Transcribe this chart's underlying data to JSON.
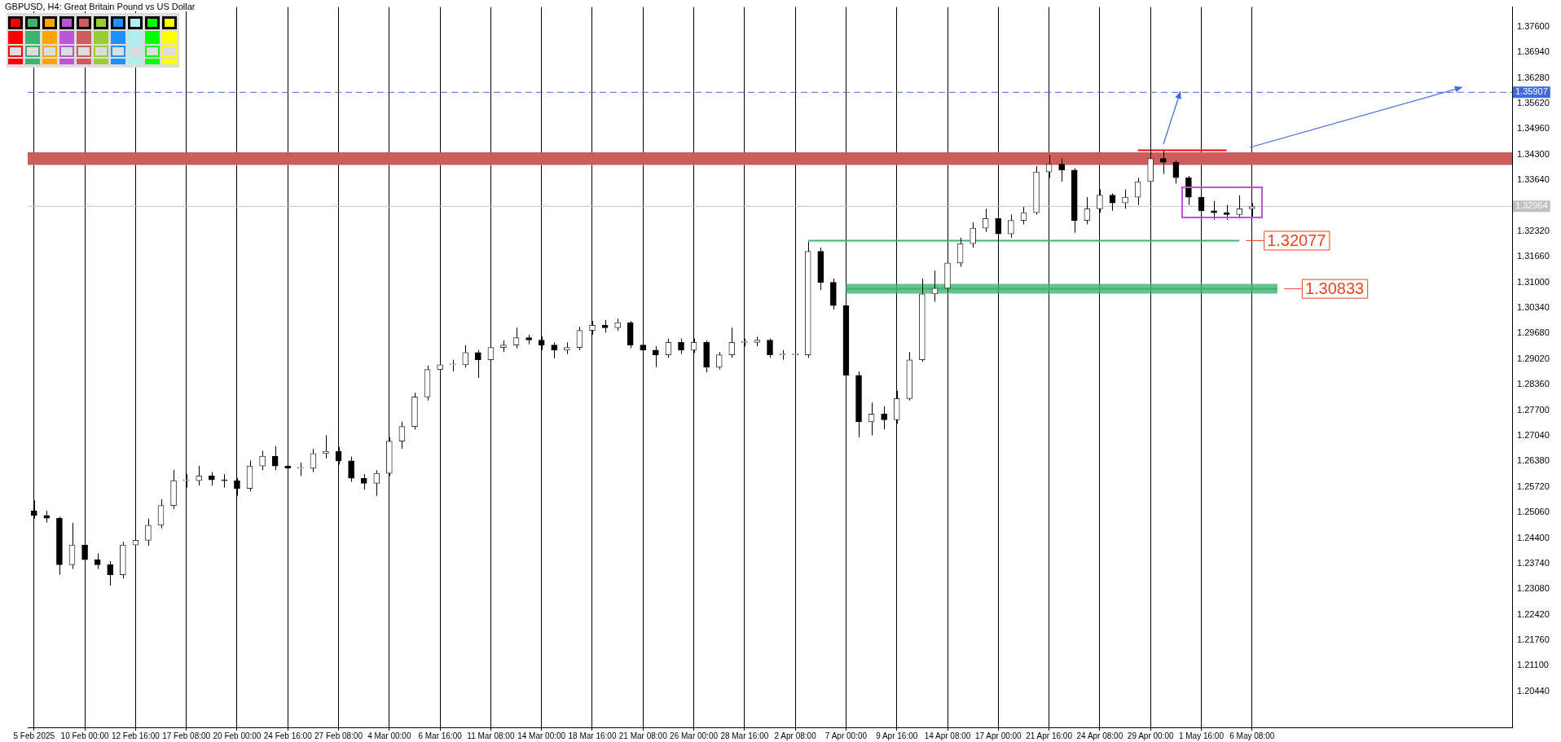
{
  "chart_data": {
    "type": "candlestick",
    "title": "GBPUSD, H4: Great Britain Pound vs US Dollar",
    "categories": [
      "5 Feb 2025",
      null,
      null,
      null,
      "10 Feb 00:00",
      null,
      null,
      null,
      "12 Feb 16:00",
      null,
      null,
      null,
      "17 Feb 08:00",
      null,
      null,
      null,
      "20 Feb 00:00",
      null,
      null,
      null,
      "24 Feb 16:00",
      null,
      null,
      null,
      "27 Feb 08:00",
      null,
      null,
      null,
      "4 Mar 00:00",
      null,
      null,
      null,
      "6 Mar 16:00",
      null,
      null,
      null,
      "11 Mar 08:00",
      null,
      null,
      null,
      "14 Mar 00:00",
      null,
      null,
      null,
      "18 Mar 16:00",
      null,
      null,
      null,
      "21 Mar 08:00",
      null,
      null,
      null,
      "26 Mar 00:00",
      null,
      null,
      null,
      "28 Mar 16:00",
      null,
      null,
      null,
      "2 Apr 08:00",
      null,
      null,
      null,
      "7 Apr 00:00",
      null,
      null,
      null,
      "9 Apr 16:00",
      null,
      null,
      null,
      "14 Apr 08:00",
      null,
      null,
      null,
      "17 Apr 00:00",
      null,
      null,
      null,
      "21 Apr 16:00",
      null,
      null,
      null,
      "24 Apr 08:00",
      null,
      null,
      null,
      "29 Apr 00:00",
      null,
      null,
      null,
      "1 May 16:00",
      null,
      null,
      null,
      "6 May 08:00",
      null,
      null,
      null,
      null,
      null,
      null,
      null,
      null,
      null,
      null,
      null,
      null,
      null,
      null,
      null,
      null,
      null,
      null,
      null,
      null
    ],
    "ohlc": [
      [
        1.251,
        1.2537,
        1.249,
        1.2498
      ],
      [
        1.2498,
        1.251,
        1.248,
        1.2491
      ],
      [
        1.2491,
        1.2495,
        1.2345,
        1.2371
      ],
      [
        1.2371,
        1.2479,
        1.236,
        1.2422
      ],
      [
        1.2422,
        1.243,
        1.237,
        1.2384
      ],
      [
        1.2384,
        1.24,
        1.236,
        1.2371
      ],
      [
        1.2371,
        1.238,
        1.2317,
        1.2345
      ],
      [
        1.2345,
        1.243,
        1.2335,
        1.2422
      ],
      [
        1.2422,
        1.2445,
        1.2364,
        1.2434
      ],
      [
        1.2434,
        1.249,
        1.242,
        1.2473
      ],
      [
        1.2473,
        1.254,
        1.2465,
        1.2524
      ],
      [
        1.2524,
        1.2616,
        1.2515,
        1.2588
      ],
      [
        1.2588,
        1.2605,
        1.257,
        1.2588
      ],
      [
        1.2588,
        1.2626,
        1.2575,
        1.26
      ],
      [
        1.26,
        1.261,
        1.2575,
        1.259
      ],
      [
        1.259,
        1.2605,
        1.257,
        1.2588
      ],
      [
        1.2588,
        1.2595,
        1.2549,
        1.2568
      ],
      [
        1.2568,
        1.264,
        1.256,
        1.2626
      ],
      [
        1.2626,
        1.2665,
        1.2615,
        1.2651
      ],
      [
        1.2651,
        1.2677,
        1.2615,
        1.2626
      ],
      [
        1.2626,
        1.264,
        1.2605,
        1.262
      ],
      [
        1.262,
        1.2635,
        1.26,
        1.262
      ],
      [
        1.262,
        1.267,
        1.261,
        1.2658
      ],
      [
        1.2658,
        1.2705,
        1.2645,
        1.2664
      ],
      [
        1.2664,
        1.2675,
        1.263,
        1.2639
      ],
      [
        1.2639,
        1.265,
        1.2585,
        1.2594
      ],
      [
        1.2594,
        1.2605,
        1.2565,
        1.2581
      ],
      [
        1.2581,
        1.2615,
        1.2549,
        1.2607
      ],
      [
        1.2607,
        1.27,
        1.26,
        1.269
      ],
      [
        1.269,
        1.274,
        1.267,
        1.2728
      ],
      [
        1.2728,
        1.2815,
        1.272,
        1.2804
      ],
      [
        1.2804,
        1.2885,
        1.2795,
        1.2875
      ],
      [
        1.2875,
        1.2917,
        1.286,
        1.2887
      ],
      [
        1.2887,
        1.29,
        1.287,
        1.2887
      ],
      [
        1.2887,
        1.2938,
        1.288,
        1.2919
      ],
      [
        1.2919,
        1.2925,
        1.2853,
        1.29
      ],
      [
        1.29,
        1.2945,
        1.289,
        1.2932
      ],
      [
        1.2932,
        1.295,
        1.292,
        1.2938
      ],
      [
        1.2938,
        1.2983,
        1.293,
        1.2957
      ],
      [
        1.2957,
        1.2965,
        1.294,
        1.2951
      ],
      [
        1.2951,
        1.296,
        1.2925,
        1.2938
      ],
      [
        1.2938,
        1.2945,
        1.2904,
        1.2925
      ],
      [
        1.2925,
        1.2945,
        1.2915,
        1.2932
      ],
      [
        1.2932,
        1.2985,
        1.2925,
        1.2976
      ],
      [
        1.2976,
        1.3,
        1.2965,
        1.2989
      ],
      [
        1.2989,
        1.3003,
        1.297,
        1.2983
      ],
      [
        1.2983,
        1.3006,
        1.2975,
        1.2996
      ],
      [
        1.2996,
        1.3,
        1.293,
        1.2938
      ],
      [
        1.2938,
        1.295,
        1.2915,
        1.2925
      ],
      [
        1.2925,
        1.2935,
        1.2881,
        1.2913
      ],
      [
        1.2913,
        1.2955,
        1.2905,
        1.2945
      ],
      [
        1.2945,
        1.2955,
        1.2915,
        1.2925
      ],
      [
        1.2925,
        1.2955,
        1.2918,
        1.2945
      ],
      [
        1.2945,
        1.295,
        1.2868,
        1.2881
      ],
      [
        1.2881,
        1.292,
        1.2875,
        1.2913
      ],
      [
        1.2913,
        1.2983,
        1.2905,
        1.2945
      ],
      [
        1.2945,
        1.2955,
        1.2935,
        1.2945
      ],
      [
        1.2945,
        1.296,
        1.2935,
        1.2951
      ],
      [
        1.2951,
        1.2955,
        1.2905,
        1.2913
      ],
      [
        1.2913,
        1.2925,
        1.29,
        1.2913
      ],
      [
        1.2913,
        1.2925,
        1.29,
        1.2913
      ],
      [
        1.2913,
        1.3205,
        1.2905,
        1.318
      ],
      [
        1.318,
        1.319,
        1.308,
        1.31
      ],
      [
        1.31,
        1.311,
        1.303,
        1.304
      ],
      [
        1.304,
        1.305,
        1.284,
        1.286
      ],
      [
        1.286,
        1.287,
        1.27,
        1.274
      ],
      [
        1.274,
        1.279,
        1.2705,
        1.276
      ],
      [
        1.276,
        1.278,
        1.272,
        1.2745
      ],
      [
        1.2745,
        1.282,
        1.2735,
        1.28
      ],
      [
        1.28,
        1.292,
        1.2795,
        1.29
      ],
      [
        1.29,
        1.311,
        1.2895,
        1.307
      ],
      [
        1.307,
        1.313,
        1.305,
        1.3085
      ],
      [
        1.3085,
        1.3165,
        1.3075,
        1.315
      ],
      [
        1.315,
        1.3215,
        1.314,
        1.32
      ],
      [
        1.32,
        1.3255,
        1.319,
        1.324
      ],
      [
        1.324,
        1.329,
        1.323,
        1.3265
      ],
      [
        1.3265,
        1.327,
        1.3205,
        1.3225
      ],
      [
        1.3225,
        1.3275,
        1.3215,
        1.326
      ],
      [
        1.326,
        1.3295,
        1.325,
        1.328
      ],
      [
        1.328,
        1.34,
        1.3275,
        1.3385
      ],
      [
        1.3385,
        1.3429,
        1.337,
        1.3405
      ],
      [
        1.3405,
        1.342,
        1.336,
        1.339
      ],
      [
        1.339,
        1.3395,
        1.3228,
        1.326
      ],
      [
        1.326,
        1.332,
        1.325,
        1.329
      ],
      [
        1.329,
        1.334,
        1.328,
        1.3325
      ],
      [
        1.3325,
        1.333,
        1.3285,
        1.3305
      ],
      [
        1.3305,
        1.334,
        1.329,
        1.332
      ],
      [
        1.332,
        1.337,
        1.33,
        1.336
      ],
      [
        1.336,
        1.3442,
        1.335,
        1.342
      ],
      [
        1.342,
        1.344,
        1.338,
        1.341
      ],
      [
        1.341,
        1.3415,
        1.3355,
        1.337
      ],
      [
        1.337,
        1.3375,
        1.33,
        1.332
      ],
      [
        1.332,
        1.3325,
        1.3265,
        1.3285
      ],
      [
        1.3285,
        1.331,
        1.3262,
        1.328
      ],
      [
        1.328,
        1.33,
        1.3262,
        1.3275
      ],
      [
        1.3275,
        1.3325,
        1.3265,
        1.329
      ],
      [
        1.329,
        1.3305,
        1.327,
        1.3296
      ],
      null,
      null,
      null,
      null,
      null,
      null,
      null,
      null,
      null,
      null,
      null,
      null,
      null,
      null,
      null,
      null,
      null,
      null,
      null,
      null
    ],
    "series": [
      {
        "type": "line",
        "color": "#3cb371",
        "values": [
          null,
          null,
          null,
          null,
          null,
          null,
          null,
          null,
          null,
          null,
          null,
          null,
          null,
          null,
          null,
          null,
          null,
          null,
          null,
          null,
          null,
          null,
          null,
          null,
          null,
          null,
          null,
          null,
          null,
          null,
          null,
          null,
          null,
          null,
          null,
          null,
          null,
          null,
          null,
          null,
          null,
          null,
          null,
          null,
          null,
          null,
          null,
          null,
          null,
          null,
          null,
          null,
          null,
          null,
          null,
          null,
          null,
          null,
          null,
          null,
          null,
          1.32077,
          null,
          null,
          null,
          null,
          null,
          null,
          null,
          null,
          null,
          null,
          null,
          null,
          null,
          null,
          null,
          null,
          null,
          null,
          null,
          null,
          null,
          null,
          null,
          null,
          null,
          null,
          null,
          null,
          null,
          null,
          null,
          null,
          null,
          1.32077,
          null,
          null,
          null,
          null,
          null,
          null,
          null,
          null,
          null,
          null,
          null,
          null,
          null,
          null,
          null,
          null,
          null,
          null,
          null,
          null,
          null
        ],
        "value_labels": [
          null,
          null,
          null,
          null,
          null,
          null,
          null,
          null,
          null,
          null,
          null,
          null,
          null,
          null,
          null,
          null,
          null,
          null,
          null,
          null,
          null,
          null,
          null,
          null,
          null,
          null,
          null,
          null,
          null,
          null,
          null,
          null,
          null,
          null,
          null,
          null,
          null,
          null,
          null,
          null,
          null,
          null,
          null,
          null,
          null,
          null,
          null,
          null,
          null,
          null,
          null,
          null,
          null,
          null,
          null,
          null,
          null,
          null,
          null,
          null,
          null,
          null,
          null,
          null,
          null,
          null,
          null,
          null,
          null,
          null,
          null,
          null,
          null,
          null,
          null,
          null,
          null,
          null,
          null,
          null,
          null,
          null,
          null,
          null,
          null,
          null,
          null,
          null,
          null,
          null,
          null,
          null,
          null,
          null,
          null,
          "1.32077",
          null,
          null,
          null,
          null,
          null,
          null,
          null,
          null,
          null,
          null,
          null,
          null,
          null,
          null,
          null,
          null,
          null,
          null,
          null,
          null,
          null
        ]
      },
      {
        "type": "line",
        "color": "#3cb371",
        "values": [
          null,
          null,
          null,
          null,
          null,
          null,
          null,
          null,
          null,
          null,
          null,
          null,
          null,
          null,
          null,
          null,
          null,
          null,
          null,
          null,
          null,
          null,
          null,
          null,
          null,
          null,
          null,
          null,
          null,
          null,
          null,
          null,
          null,
          null,
          null,
          null,
          null,
          null,
          null,
          null,
          null,
          null,
          null,
          null,
          null,
          null,
          null,
          null,
          null,
          null,
          null,
          null,
          null,
          null,
          null,
          null,
          null,
          null,
          null,
          null,
          null,
          null,
          null,
          null,
          1.30833,
          null,
          null,
          null,
          null,
          null,
          null,
          null,
          null,
          null,
          null,
          null,
          null,
          null,
          null,
          null,
          null,
          null,
          null,
          null,
          null,
          null,
          null,
          null,
          null,
          null,
          null,
          null,
          null,
          null,
          null,
          null,
          null,
          null,
          1.30833,
          null,
          null,
          null,
          null,
          null,
          null,
          null,
          null,
          null,
          null,
          null,
          null,
          null,
          null,
          null,
          null,
          null,
          null
        ],
        "value_labels": [
          null,
          null,
          null,
          null,
          null,
          null,
          null,
          null,
          null,
          null,
          null,
          null,
          null,
          null,
          null,
          null,
          null,
          null,
          null,
          null,
          null,
          null,
          null,
          null,
          null,
          null,
          null,
          null,
          null,
          null,
          null,
          null,
          null,
          null,
          null,
          null,
          null,
          null,
          null,
          null,
          null,
          null,
          null,
          null,
          null,
          null,
          null,
          null,
          null,
          null,
          null,
          null,
          null,
          null,
          null,
          null,
          null,
          null,
          null,
          null,
          null,
          null,
          null,
          null,
          null,
          null,
          null,
          null,
          null,
          null,
          null,
          null,
          null,
          null,
          null,
          null,
          null,
          null,
          null,
          null,
          null,
          null,
          null,
          null,
          null,
          null,
          null,
          null,
          null,
          null,
          null,
          null,
          null,
          null,
          null,
          null,
          null,
          null,
          "1.30833",
          null,
          null,
          null,
          null,
          null,
          null,
          null,
          null,
          null,
          null,
          null,
          null,
          null,
          null,
          null,
          null,
          null,
          null
        ],
        "lower": [
          null,
          null,
          null,
          null,
          null,
          null,
          null,
          null,
          null,
          null,
          null,
          null,
          null,
          null,
          null,
          null,
          null,
          null,
          null,
          null,
          null,
          null,
          null,
          null,
          null,
          null,
          null,
          null,
          null,
          null,
          null,
          null,
          null,
          null,
          null,
          null,
          null,
          null,
          null,
          null,
          null,
          null,
          null,
          null,
          null,
          null,
          null,
          null,
          null,
          null,
          null,
          null,
          null,
          null,
          null,
          null,
          null,
          null,
          null,
          null,
          null,
          null,
          null,
          null,
          1.3071,
          null,
          null,
          null,
          null,
          null,
          null,
          null,
          null,
          null,
          null,
          null,
          null,
          null,
          null,
          null,
          null,
          null,
          null,
          null,
          null,
          null,
          null,
          null,
          null,
          null,
          null,
          null,
          null,
          null,
          null,
          null,
          null,
          null,
          1.3071,
          null,
          null,
          null,
          null,
          null,
          null,
          null,
          null,
          null,
          null,
          null,
          null,
          null,
          null,
          null,
          null,
          null,
          null
        ],
        "upper": [
          null,
          null,
          null,
          null,
          null,
          null,
          null,
          null,
          null,
          null,
          null,
          null,
          null,
          null,
          null,
          null,
          null,
          null,
          null,
          null,
          null,
          null,
          null,
          null,
          null,
          null,
          null,
          null,
          null,
          null,
          null,
          null,
          null,
          null,
          null,
          null,
          null,
          null,
          null,
          null,
          null,
          null,
          null,
          null,
          null,
          null,
          null,
          null,
          null,
          null,
          null,
          null,
          null,
          null,
          null,
          null,
          null,
          null,
          null,
          null,
          null,
          null,
          null,
          null,
          1.3096,
          null,
          null,
          null,
          null,
          null,
          null,
          null,
          null,
          null,
          null,
          null,
          null,
          null,
          null,
          null,
          null,
          null,
          null,
          null,
          null,
          null,
          null,
          null,
          null,
          null,
          null,
          null,
          null,
          null,
          null,
          null,
          null,
          null,
          1.3096,
          null,
          null,
          null,
          null,
          null,
          null,
          null,
          null,
          null,
          null,
          null,
          null,
          null,
          null,
          null,
          null,
          null,
          null
        ]
      },
      {
        "type": "line",
        "color": "#ff0000",
        "values": [
          null,
          null,
          null,
          null,
          null,
          null,
          null,
          null,
          null,
          null,
          null,
          null,
          null,
          null,
          null,
          null,
          null,
          null,
          null,
          null,
          null,
          null,
          null,
          null,
          null,
          null,
          null,
          null,
          null,
          null,
          null,
          null,
          null,
          null,
          null,
          null,
          null,
          null,
          null,
          null,
          null,
          null,
          null,
          null,
          null,
          null,
          null,
          null,
          null,
          null,
          null,
          null,
          null,
          null,
          null,
          null,
          null,
          null,
          null,
          null,
          null,
          null,
          null,
          null,
          null,
          null,
          null,
          null,
          null,
          null,
          null,
          null,
          null,
          null,
          null,
          null,
          null,
          null,
          null,
          null,
          null,
          null,
          null,
          null,
          null,
          null,
          null,
          1.3441,
          null,
          null,
          null,
          null,
          null,
          null,
          1.3441,
          null,
          null,
          null,
          null,
          null,
          null,
          null,
          null,
          null,
          null,
          null,
          null,
          null,
          null,
          null,
          null,
          null,
          null,
          null,
          null,
          null,
          null
        ]
      }
    ],
    "ylim": [
      1.1951,
      1.3811
    ],
    "yticks": [
      {
        "value": 1.2044,
        "label": "1.20440"
      },
      {
        "value": 1.211,
        "label": "1.21100"
      },
      {
        "value": 1.2176,
        "label": "1.21760"
      },
      {
        "value": 1.2242,
        "label": "1.22420"
      },
      {
        "value": 1.2308,
        "label": "1.23080"
      },
      {
        "value": 1.2374,
        "label": "1.23740"
      },
      {
        "value": 1.244,
        "label": "1.24400"
      },
      {
        "value": 1.2506,
        "label": "1.25060"
      },
      {
        "value": 1.2572,
        "label": "1.25720"
      },
      {
        "value": 1.2638,
        "label": "1.26380"
      },
      {
        "value": 1.2704,
        "label": "1.27040"
      },
      {
        "value": 1.277,
        "label": "1.27700"
      },
      {
        "value": 1.2836,
        "label": "1.28360"
      },
      {
        "value": 1.2902,
        "label": "1.29020"
      },
      {
        "value": 1.2968,
        "label": "1.29680"
      },
      {
        "value": 1.3034,
        "label": "1.30340"
      },
      {
        "value": 1.31,
        "label": "1.31000"
      },
      {
        "value": 1.3166,
        "label": "1.31660"
      },
      {
        "value": 1.3232,
        "label": "1.32320"
      },
      {
        "value": 1.3364,
        "label": "1.33640"
      },
      {
        "value": 1.343,
        "label": "1.34300"
      },
      {
        "value": 1.3496,
        "label": "1.34960"
      },
      {
        "value": 1.3562,
        "label": "1.35620"
      },
      {
        "value": 1.3628,
        "label": "1.36280"
      },
      {
        "value": 1.3694,
        "label": "1.36940"
      },
      {
        "value": 1.376,
        "label": "1.37600"
      }
    ],
    "bands": [
      {
        "axis": "y",
        "from": 1.3403,
        "to": 1.3436,
        "color": "#cd5c5c"
      }
    ],
    "ref_lines": [
      {
        "axis": "y",
        "value": 1.35907,
        "label": "1.35907",
        "color": "#4169e1",
        "line_style": "dashed"
      },
      {
        "axis": "y",
        "value": 1.32964,
        "label": "1.32964",
        "color": "#c0c0c0",
        "line_style": "solid"
      }
    ],
    "grid": "x",
    "legend": false,
    "marker": "none"
  }
}
